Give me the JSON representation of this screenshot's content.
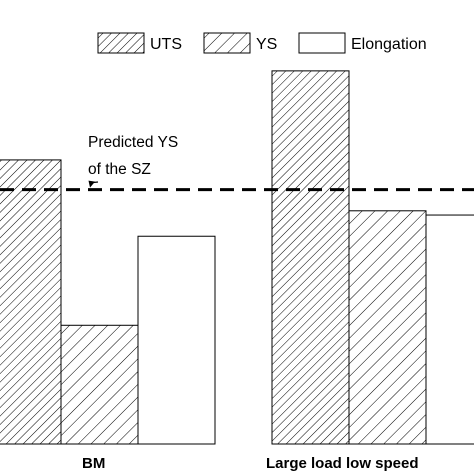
{
  "chart_data": {
    "type": "bar",
    "categories": [
      "BM",
      "Large load low speed"
    ],
    "series": [
      {
        "name": "UTS",
        "values": [
          67,
          88
        ],
        "pattern": "crosshatch-dense"
      },
      {
        "name": "YS",
        "values": [
          28,
          55
        ],
        "pattern": "hatch-wide"
      },
      {
        "name": "Elongation",
        "values": [
          49,
          54
        ],
        "pattern": "none"
      }
    ],
    "ylim": [
      0,
      100
    ],
    "reference_line": {
      "value": 60,
      "label_lines": [
        "Predicted YS",
        "of the SZ"
      ]
    },
    "grid": false,
    "legend_position": "top-right",
    "colors": {
      "stroke": "#000000",
      "fill": "#ffffff"
    }
  }
}
